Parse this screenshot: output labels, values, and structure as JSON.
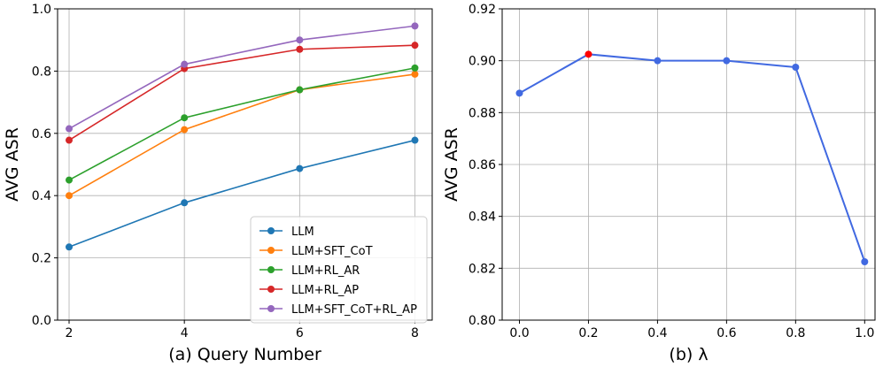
{
  "chart_data": [
    {
      "type": "line",
      "xlabel": "(a) Query Number",
      "ylabel": "AVG ASR",
      "x": [
        2,
        4,
        6,
        8
      ],
      "xlim": [
        1.8,
        8.3
      ],
      "ylim": [
        0.0,
        1.0
      ],
      "xticks": [
        "2",
        "4",
        "6",
        "8"
      ],
      "yticks": [
        "0.0",
        "0.2",
        "0.4",
        "0.6",
        "0.8",
        "1.0"
      ],
      "grid": true,
      "legend_position": "bottom-right",
      "series": [
        {
          "name": "LLM",
          "color": "#1f77b4",
          "values": [
            0.235,
            0.377,
            0.487,
            0.578
          ]
        },
        {
          "name": "LLM+SFT_CoT",
          "color": "#ff7f0e",
          "values": [
            0.4,
            0.612,
            0.74,
            0.79
          ]
        },
        {
          "name": "LLM+RL_AR",
          "color": "#2ca02c",
          "values": [
            0.45,
            0.65,
            0.74,
            0.81
          ]
        },
        {
          "name": "LLM+RL_AP",
          "color": "#d62728",
          "values": [
            0.578,
            0.808,
            0.87,
            0.883
          ]
        },
        {
          "name": "LLM+SFT_CoT+RL_AP",
          "color": "#9467bd",
          "values": [
            0.615,
            0.822,
            0.9,
            0.945
          ]
        }
      ]
    },
    {
      "type": "line",
      "xlabel": "(b) λ",
      "ylabel": "AVG ASR",
      "x": [
        0.0,
        0.2,
        0.4,
        0.6,
        0.8,
        1.0
      ],
      "xlim": [
        -0.05,
        1.03
      ],
      "ylim": [
        0.8,
        0.92
      ],
      "xticks": [
        "0.0",
        "0.2",
        "0.4",
        "0.6",
        "0.8",
        "1.0"
      ],
      "yticks": [
        "0.80",
        "0.82",
        "0.84",
        "0.86",
        "0.88",
        "0.90",
        "0.92"
      ],
      "grid": true,
      "series": [
        {
          "color": "#4169e1",
          "highlight_color": "#ff0000",
          "highlight_index": 1,
          "values": [
            0.8875,
            0.9025,
            0.9,
            0.9,
            0.8975,
            0.8225
          ]
        }
      ]
    }
  ]
}
